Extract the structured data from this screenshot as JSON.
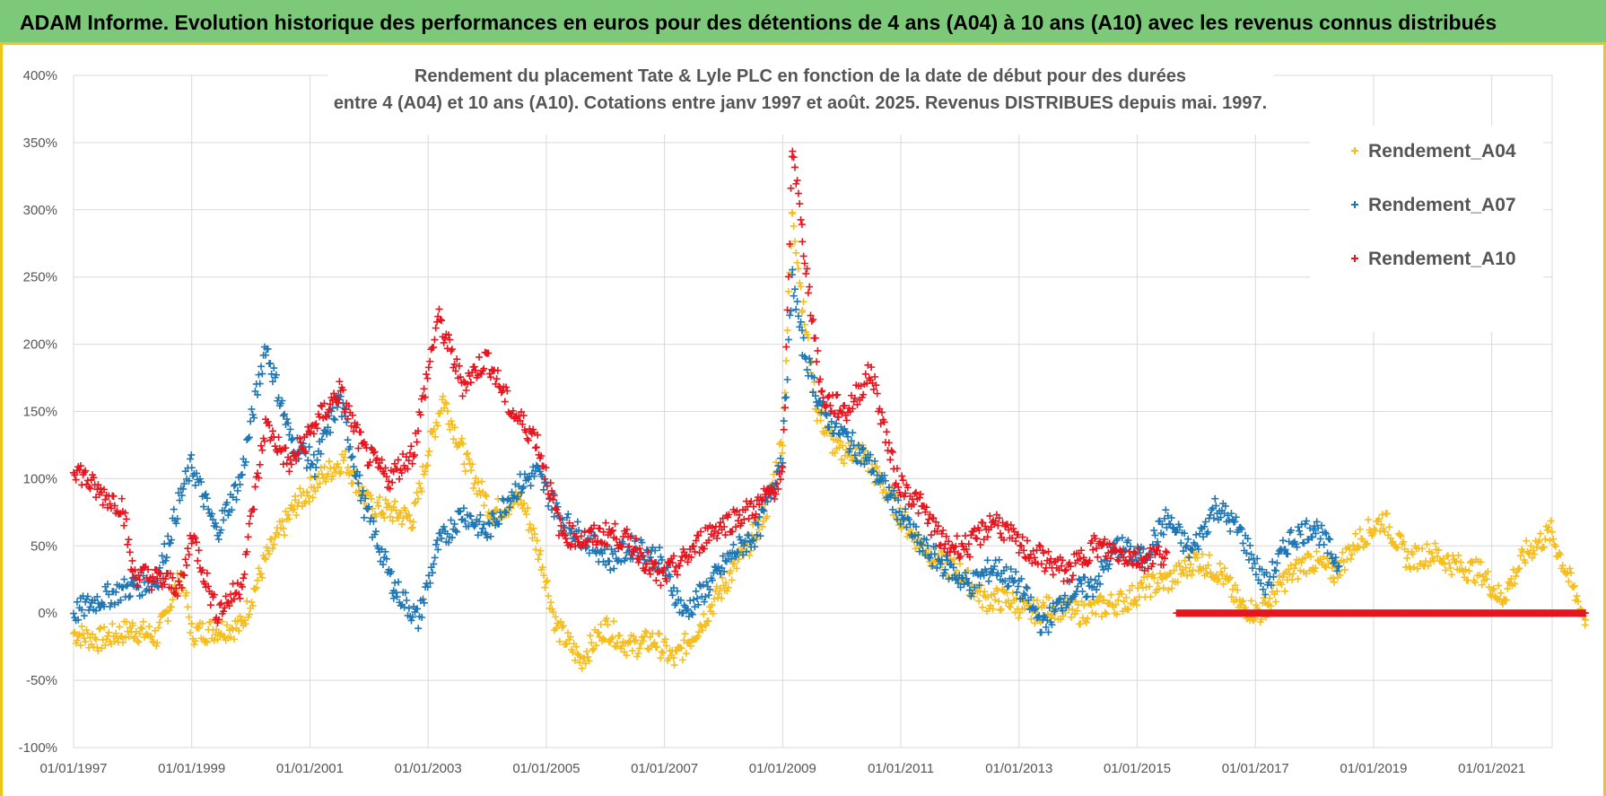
{
  "banner": {
    "text": "ADAM Informe. Evolution historique des performances en euros pour des détentions de 4 ans (A04) à 10 ans (A10) avec les revenus connus distribués"
  },
  "colors": {
    "banner_bg": "#7dc97a",
    "frame": "#f0c419",
    "A04": "#f5be1e",
    "A07": "#1f77b4",
    "A10": "#e8141e"
  },
  "chart_data": {
    "type": "scatter",
    "title_line1": "Rendement du placement Tate & Lyle PLC en fonction de la date de début pour des durées",
    "title_line2": "entre 4 (A04) et 10 ans (A10). Cotations entre janv 1997 et août. 2025. Revenus DISTRIBUES depuis mai. 1997.",
    "xlabel": "",
    "ylabel": "",
    "x_range": [
      "01/01/1997",
      "09/01/2022"
    ],
    "ylim": [
      -100,
      400
    ],
    "y_ticks": [
      "400%",
      "350%",
      "300%",
      "250%",
      "200%",
      "150%",
      "100%",
      "50%",
      "0%",
      "-50%",
      "-100%"
    ],
    "x_ticks": [
      "01/01/1997",
      "01/01/1999",
      "01/01/2001",
      "01/01/2003",
      "01/01/2005",
      "01/01/2007",
      "01/01/2009",
      "01/01/2011",
      "01/01/2013",
      "01/01/2015",
      "01/01/2017",
      "01/01/2019",
      "01/01/2021"
    ],
    "grid": true,
    "legend_position": "right",
    "series": [
      {
        "name": "Rendement_A04",
        "marker": "+",
        "x": [
          "1997-01",
          "1997-06",
          "1998-01",
          "1998-06",
          "1998-11",
          "1999-01",
          "1999-06",
          "1999-11",
          "2000-04",
          "2000-10",
          "2001-03",
          "2001-08",
          "2002-01",
          "2002-06",
          "2002-10",
          "2003-01",
          "2003-04",
          "2003-09",
          "2004-02",
          "2004-08",
          "2004-12",
          "2005-03",
          "2005-08",
          "2006-01",
          "2006-06",
          "2006-11",
          "2007-03",
          "2007-08",
          "2008-01",
          "2008-06",
          "2008-10",
          "2009-01",
          "2009-03",
          "2009-05",
          "2009-08",
          "2009-12",
          "2010-05",
          "2010-10",
          "2011-03",
          "2011-08",
          "2012-01",
          "2012-06",
          "2012-11",
          "2013-03",
          "2013-08",
          "2014-01",
          "2014-06",
          "2014-11",
          "2015-03",
          "2015-08",
          "2016-01",
          "2016-06",
          "2016-10",
          "2017-02",
          "2017-07",
          "2017-12",
          "2018-05",
          "2018-10",
          "2019-03",
          "2019-08",
          "2020-01",
          "2020-06",
          "2020-11",
          "2021-03",
          "2021-08",
          "2022-01",
          "2022-08"
        ],
        "y": [
          -15,
          -20,
          -12,
          -18,
          30,
          -15,
          -12,
          -10,
          40,
          80,
          100,
          115,
          80,
          75,
          70,
          120,
          160,
          110,
          75,
          85,
          40,
          -10,
          -35,
          -10,
          -25,
          -20,
          -35,
          -10,
          20,
          50,
          80,
          130,
          300,
          230,
          150,
          120,
          120,
          90,
          60,
          40,
          30,
          10,
          10,
          0,
          5,
          0,
          5,
          10,
          20,
          25,
          40,
          30,
          5,
          0,
          25,
          40,
          30,
          55,
          70,
          40,
          45,
          35,
          30,
          10,
          45,
          60,
          -5
        ]
      },
      {
        "name": "Rendement_A07",
        "marker": "+",
        "x": [
          "1997-01",
          "1997-06",
          "1998-01",
          "1998-06",
          "1998-11",
          "1999-01",
          "1999-06",
          "1999-11",
          "2000-04",
          "2000-09",
          "2001-02",
          "2001-07",
          "2001-12",
          "2002-06",
          "2002-11",
          "2003-03",
          "2003-08",
          "2004-01",
          "2004-06",
          "2004-11",
          "2005-04",
          "2005-09",
          "2006-02",
          "2006-07",
          "2006-12",
          "2007-05",
          "2007-10",
          "2008-03",
          "2008-08",
          "2009-01",
          "2009-03",
          "2009-05",
          "2009-09",
          "2010-02",
          "2010-07",
          "2010-12",
          "2011-05",
          "2011-10",
          "2012-03",
          "2012-08",
          "2013-01",
          "2013-06",
          "2013-11",
          "2014-04",
          "2014-09",
          "2015-02",
          "2015-07",
          "2015-12",
          "2016-05",
          "2016-10",
          "2017-03",
          "2017-08",
          "2018-01",
          "2018-06"
        ],
        "y": [
          0,
          10,
          20,
          25,
          90,
          110,
          60,
          100,
          200,
          130,
          110,
          160,
          80,
          20,
          -5,
          50,
          75,
          60,
          90,
          105,
          70,
          55,
          40,
          50,
          40,
          0,
          20,
          45,
          60,
          120,
          250,
          200,
          150,
          130,
          110,
          80,
          50,
          35,
          20,
          35,
          20,
          -10,
          15,
          20,
          50,
          40,
          70,
          45,
          80,
          60,
          20,
          55,
          65,
          35
        ]
      },
      {
        "name": "Rendement_A10",
        "marker": "+",
        "x": [
          "1997-01",
          "1997-06",
          "1997-11",
          "1998-01",
          "1998-06",
          "1998-11",
          "1999-01",
          "1999-06",
          "1999-11",
          "2000-04",
          "2000-09",
          "2001-02",
          "2001-07",
          "2001-12",
          "2002-05",
          "2002-10",
          "2003-03",
          "2003-08",
          "2004-01",
          "2004-06",
          "2004-11",
          "2005-04",
          "2005-09",
          "2006-02",
          "2006-07",
          "2006-12",
          "2007-05",
          "2007-10",
          "2008-03",
          "2008-08",
          "2009-01",
          "2009-03",
          "2009-05",
          "2009-09",
          "2010-02",
          "2010-07",
          "2010-12",
          "2011-05",
          "2011-10",
          "2012-03",
          "2012-08",
          "2013-01",
          "2013-06",
          "2013-11",
          "2014-04",
          "2014-09",
          "2015-02",
          "2015-07"
        ],
        "y": [
          110,
          90,
          80,
          30,
          25,
          20,
          60,
          0,
          20,
          140,
          110,
          140,
          165,
          120,
          100,
          120,
          220,
          170,
          190,
          150,
          130,
          60,
          55,
          60,
          50,
          25,
          40,
          60,
          70,
          80,
          100,
          350,
          280,
          160,
          150,
          180,
          100,
          80,
          50,
          50,
          70,
          50,
          40,
          30,
          50,
          45,
          40,
          45
        ]
      },
      {
        "name": "Rendement_A10 (0%)",
        "marker": "+",
        "x": [
          "2015-09",
          "2022-08"
        ],
        "y": [
          0,
          0
        ]
      }
    ]
  },
  "legend": {
    "items": [
      "Rendement_A04",
      "Rendement_A07",
      "Rendement_A10"
    ]
  }
}
